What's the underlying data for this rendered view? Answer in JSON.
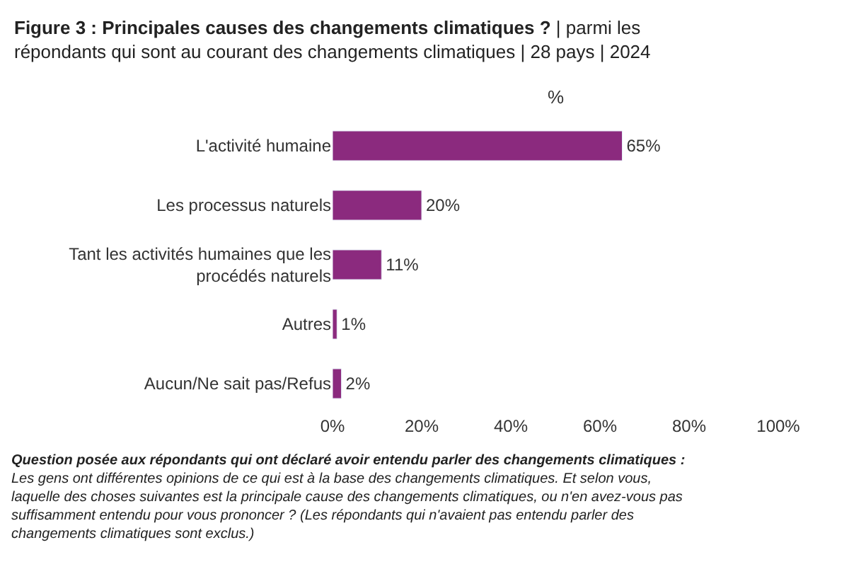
{
  "chart_data": {
    "type": "bar",
    "orientation": "horizontal",
    "title": "Figure 3 : Principales causes des changements climatiques ?",
    "subtitle": "| parmi les répondants qui sont au courant des changements climatiques | 28 pays | 2024",
    "xlabel": "%",
    "categories": [
      "L'activité humaine",
      "Les processus naturels",
      "Tant les activités humaines que les procédés naturels",
      "Autres",
      "Aucun/Ne sait pas/Refus"
    ],
    "values": [
      65,
      20,
      11,
      1,
      2
    ],
    "value_labels": [
      "65%",
      "20%",
      "11%",
      "1%",
      "2%"
    ],
    "color": "#8b2a7e",
    "xlim": [
      0,
      100
    ],
    "xticks": [
      {
        "value": 0,
        "label": "0%"
      },
      {
        "value": 20,
        "label": "20%"
      },
      {
        "value": 40,
        "label": "40%"
      },
      {
        "value": 60,
        "label": "60%"
      },
      {
        "value": 80,
        "label": "80%"
      },
      {
        "value": 100,
        "label": "100%"
      }
    ],
    "legend": false,
    "annotations": [
      "Question posée aux répondants qui ont déclaré avoir entendu parler des changements climatiques :",
      "Les gens ont différentes opinions de ce qui est à la base des changements climatiques. Et selon vous, laquelle des choses suivantes est la principale cause des changements climatiques, ou n'en avez-vous pas suffisamment entendu pour vous prononcer ? (Les répondants qui n'avaient pas entendu parler des changements climatiques sont exclus.)"
    ]
  }
}
